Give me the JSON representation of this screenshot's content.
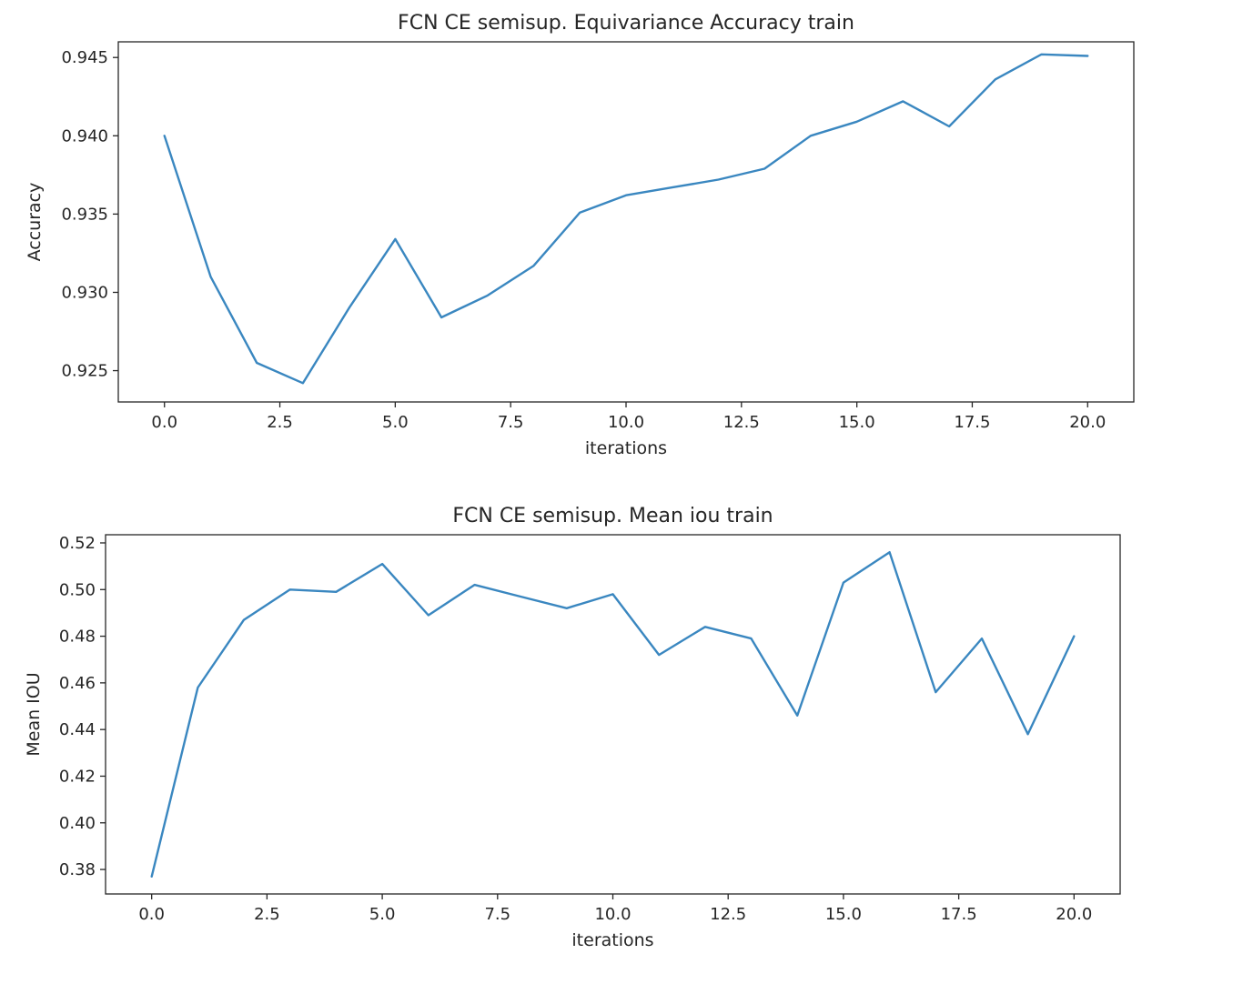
{
  "chart_data": [
    {
      "type": "line",
      "title": "FCN CE semisup. Equivariance Accuracy train",
      "xlabel": "iterations",
      "ylabel": "Accuracy",
      "xlim": [
        -1,
        21
      ],
      "ylim": [
        0.923,
        0.946
      ],
      "x_ticks": [
        0.0,
        2.5,
        5.0,
        7.5,
        10.0,
        12.5,
        15.0,
        17.5,
        20.0
      ],
      "x_tick_labels": [
        "0.0",
        "2.5",
        "5.0",
        "7.5",
        "10.0",
        "12.5",
        "15.0",
        "17.5",
        "20.0"
      ],
      "y_ticks": [
        0.925,
        0.93,
        0.935,
        0.94,
        0.945
      ],
      "y_tick_labels": [
        "0.925",
        "0.930",
        "0.935",
        "0.940",
        "0.945"
      ],
      "grid": false,
      "color": "#3a87c0",
      "x": [
        0,
        1,
        2,
        3,
        4,
        5,
        6,
        7,
        8,
        9,
        10,
        11,
        12,
        13,
        14,
        15,
        16,
        17,
        18,
        19,
        20
      ],
      "values": [
        0.94,
        0.931,
        0.9255,
        0.9242,
        0.929,
        0.9334,
        0.9284,
        0.9298,
        0.9317,
        0.9351,
        0.9362,
        0.9367,
        0.9372,
        0.9379,
        0.94,
        0.9409,
        0.9422,
        0.9406,
        0.9436,
        0.9452,
        0.9451
      ]
    },
    {
      "type": "line",
      "title": "FCN CE semisup. Mean iou train",
      "xlabel": "iterations",
      "ylabel": "Mean IOU",
      "xlim": [
        -1,
        21
      ],
      "ylim": [
        0.3695,
        0.5235
      ],
      "x_ticks": [
        0.0,
        2.5,
        5.0,
        7.5,
        10.0,
        12.5,
        15.0,
        17.5,
        20.0
      ],
      "x_tick_labels": [
        "0.0",
        "2.5",
        "5.0",
        "7.5",
        "10.0",
        "12.5",
        "15.0",
        "17.5",
        "20.0"
      ],
      "y_ticks": [
        0.38,
        0.4,
        0.42,
        0.44,
        0.46,
        0.48,
        0.5,
        0.52
      ],
      "y_tick_labels": [
        "0.38",
        "0.40",
        "0.42",
        "0.44",
        "0.46",
        "0.48",
        "0.50",
        "0.52"
      ],
      "grid": false,
      "color": "#3a87c0",
      "x": [
        0,
        1,
        2,
        3,
        4,
        5,
        6,
        7,
        8,
        9,
        10,
        11,
        12,
        13,
        14,
        15,
        16,
        17,
        18,
        19,
        20
      ],
      "values": [
        0.377,
        0.458,
        0.487,
        0.5,
        0.499,
        0.511,
        0.489,
        0.502,
        0.497,
        0.492,
        0.498,
        0.472,
        0.484,
        0.479,
        0.446,
        0.503,
        0.516,
        0.456,
        0.479,
        0.438,
        0.48
      ]
    }
  ]
}
